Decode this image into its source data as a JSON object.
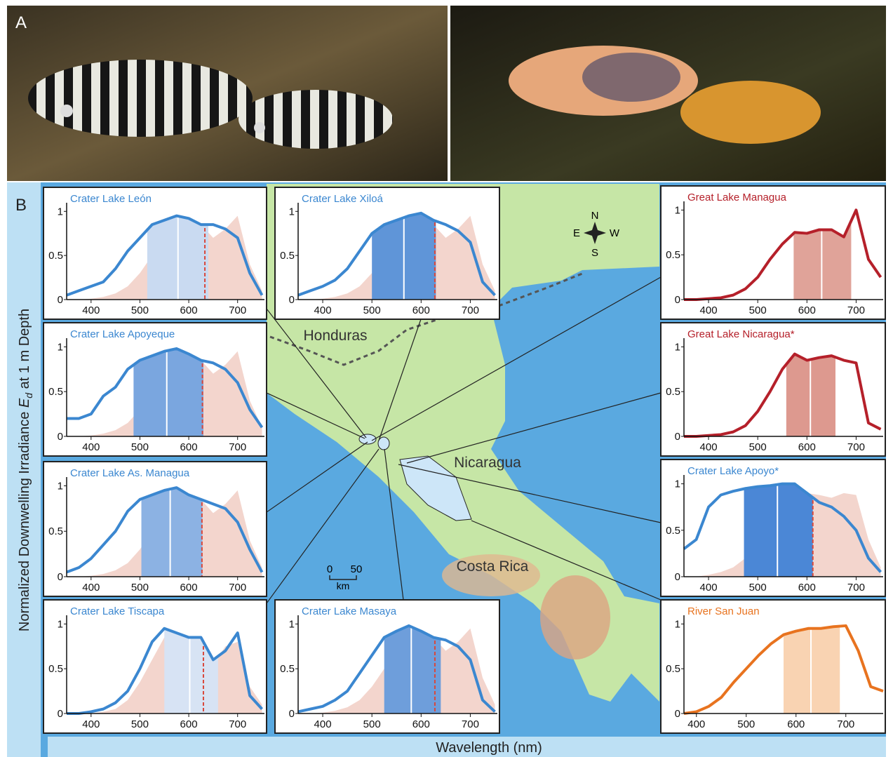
{
  "panels": {
    "a": "A",
    "b": "B"
  },
  "axis_labels": {
    "y_prefix": "Normalized Downwelling Irradiance ",
    "y_symbol": "E",
    "y_subscript": "d",
    "y_suffix": " at 1 m Depth",
    "x": "Wavelength (nm)"
  },
  "map": {
    "countries": [
      "Honduras",
      "Nicaragua",
      "Costa Rica"
    ],
    "compass": [
      "N",
      "E",
      "S",
      "W"
    ],
    "scale": {
      "ticks": [
        0,
        50
      ],
      "unit": "km"
    }
  },
  "chart_data": [
    {
      "type": "line",
      "title": "Crater Lake León",
      "title_color": "#3b87d0",
      "xlim": [
        350,
        755
      ],
      "ylim": [
        0,
        1.05
      ],
      "xticks": [
        400,
        500,
        600,
        700
      ],
      "yticks": [
        0,
        0.5,
        1
      ],
      "x": [
        350,
        375,
        400,
        425,
        450,
        475,
        500,
        525,
        550,
        575,
        600,
        625,
        650,
        675,
        700,
        725,
        750
      ],
      "series": [
        {
          "color": "#f3d5cd",
          "style": "area",
          "values": [
            0,
            0,
            0.01,
            0.03,
            0.07,
            0.15,
            0.3,
            0.5,
            0.75,
            0.9,
            0.9,
            0.85,
            0.7,
            0.8,
            0.95,
            0.4,
            0.1
          ]
        },
        {
          "color": "#3b87d0",
          "style": "line",
          "values": [
            0.05,
            0.1,
            0.15,
            0.2,
            0.35,
            0.55,
            0.7,
            0.85,
            0.9,
            0.95,
            0.92,
            0.85,
            0.85,
            0.8,
            0.7,
            0.3,
            0.05
          ]
        }
      ],
      "band": {
        "start": 515,
        "end": 640,
        "center": 578,
        "color": "#c9daf1"
      },
      "dashed_line": 633
    },
    {
      "type": "line",
      "title": "Crater Lake Xiloá",
      "title_color": "#3b87d0",
      "xlim": [
        350,
        755
      ],
      "ylim": [
        0,
        1.05
      ],
      "xticks": [
        400,
        500,
        600,
        700
      ],
      "yticks": [
        0,
        0.5,
        1
      ],
      "x": [
        350,
        375,
        400,
        425,
        450,
        475,
        500,
        525,
        550,
        575,
        600,
        625,
        650,
        675,
        700,
        725,
        750
      ],
      "series": [
        {
          "color": "#f3d5cd",
          "style": "area",
          "values": [
            0,
            0,
            0.01,
            0.03,
            0.07,
            0.15,
            0.3,
            0.5,
            0.75,
            0.9,
            0.9,
            0.85,
            0.7,
            0.8,
            0.95,
            0.4,
            0.1
          ]
        },
        {
          "color": "#3b87d0",
          "style": "line",
          "values": [
            0.05,
            0.1,
            0.15,
            0.22,
            0.35,
            0.55,
            0.75,
            0.85,
            0.9,
            0.95,
            0.98,
            0.9,
            0.85,
            0.78,
            0.65,
            0.2,
            0.05
          ]
        }
      ],
      "band": {
        "start": 500,
        "end": 630,
        "center": 565,
        "color": "#5f95d8"
      },
      "dashed_line": 628
    },
    {
      "type": "line",
      "title": "Crater Lake Apoyeque",
      "title_color": "#3b87d0",
      "xlim": [
        350,
        755
      ],
      "ylim": [
        0,
        1.05
      ],
      "xticks": [
        400,
        500,
        600,
        700
      ],
      "yticks": [
        0,
        0.5,
        1
      ],
      "x": [
        350,
        375,
        400,
        425,
        450,
        475,
        500,
        525,
        550,
        575,
        600,
        625,
        650,
        675,
        700,
        725,
        750
      ],
      "series": [
        {
          "color": "#f3d5cd",
          "style": "area",
          "values": [
            0,
            0,
            0.01,
            0.03,
            0.07,
            0.15,
            0.3,
            0.5,
            0.75,
            0.9,
            0.9,
            0.85,
            0.7,
            0.8,
            0.95,
            0.4,
            0.1
          ]
        },
        {
          "color": "#3b87d0",
          "style": "line",
          "values": [
            0.2,
            0.2,
            0.25,
            0.45,
            0.55,
            0.75,
            0.85,
            0.9,
            0.95,
            0.98,
            0.92,
            0.85,
            0.82,
            0.75,
            0.6,
            0.3,
            0.1
          ]
        }
      ],
      "band": {
        "start": 487,
        "end": 630,
        "center": 555,
        "color": "#7aa6df"
      },
      "dashed_line": 628
    },
    {
      "type": "line",
      "title": "Crater Lake As. Managua",
      "title_color": "#3b87d0",
      "xlim": [
        350,
        755
      ],
      "ylim": [
        0,
        1.05
      ],
      "xticks": [
        400,
        500,
        600,
        700
      ],
      "yticks": [
        0,
        0.5,
        1
      ],
      "x": [
        350,
        375,
        400,
        425,
        450,
        475,
        500,
        525,
        550,
        575,
        600,
        625,
        650,
        675,
        700,
        725,
        750
      ],
      "series": [
        {
          "color": "#f3d5cd",
          "style": "area",
          "values": [
            0,
            0,
            0.01,
            0.03,
            0.07,
            0.15,
            0.3,
            0.5,
            0.75,
            0.9,
            0.9,
            0.85,
            0.7,
            0.8,
            0.95,
            0.4,
            0.1
          ]
        },
        {
          "color": "#3b87d0",
          "style": "line",
          "values": [
            0.05,
            0.1,
            0.2,
            0.35,
            0.5,
            0.72,
            0.85,
            0.9,
            0.95,
            0.98,
            0.9,
            0.85,
            0.8,
            0.75,
            0.6,
            0.3,
            0.05
          ]
        }
      ],
      "band": {
        "start": 503,
        "end": 628,
        "center": 562,
        "color": "#8cb2e3"
      },
      "dashed_line": 627
    },
    {
      "type": "line",
      "title": "Crater Lake Tiscapa",
      "title_color": "#3b87d0",
      "xlim": [
        350,
        755
      ],
      "ylim": [
        0,
        1.05
      ],
      "xticks": [
        400,
        500,
        600,
        700
      ],
      "yticks": [
        0,
        0.5,
        1
      ],
      "x": [
        350,
        375,
        400,
        425,
        450,
        475,
        500,
        525,
        550,
        575,
        600,
        625,
        650,
        675,
        700,
        725,
        750
      ],
      "series": [
        {
          "color": "#f3d5cd",
          "style": "area",
          "values": [
            0,
            0,
            0,
            0.02,
            0.05,
            0.15,
            0.35,
            0.6,
            0.85,
            0.9,
            0.85,
            0.75,
            0.55,
            0.75,
            0.8,
            0.3,
            0.1
          ]
        },
        {
          "color": "#3b87d0",
          "style": "line",
          "values": [
            0,
            0,
            0.02,
            0.05,
            0.12,
            0.25,
            0.5,
            0.8,
            0.95,
            0.9,
            0.85,
            0.85,
            0.6,
            0.7,
            0.9,
            0.2,
            0.05
          ]
        }
      ],
      "band": {
        "start": 550,
        "end": 660,
        "center": 602,
        "color": "#d7e3f4"
      },
      "dashed_line": 630
    },
    {
      "type": "line",
      "title": "Crater Lake Masaya",
      "title_color": "#3b87d0",
      "xlim": [
        350,
        755
      ],
      "ylim": [
        0,
        1.05
      ],
      "xticks": [
        400,
        500,
        600,
        700
      ],
      "yticks": [
        0,
        0.5,
        1
      ],
      "x": [
        350,
        375,
        400,
        425,
        450,
        475,
        500,
        525,
        550,
        575,
        600,
        625,
        650,
        675,
        700,
        725,
        750
      ],
      "series": [
        {
          "color": "#f3d5cd",
          "style": "area",
          "values": [
            0,
            0,
            0.01,
            0.03,
            0.07,
            0.15,
            0.3,
            0.5,
            0.75,
            0.9,
            0.9,
            0.85,
            0.7,
            0.8,
            0.95,
            0.4,
            0.1
          ]
        },
        {
          "color": "#3b87d0",
          "style": "line",
          "values": [
            0.02,
            0.05,
            0.08,
            0.15,
            0.25,
            0.45,
            0.65,
            0.85,
            0.92,
            0.98,
            0.92,
            0.85,
            0.82,
            0.75,
            0.6,
            0.15,
            0.02
          ]
        }
      ],
      "band": {
        "start": 525,
        "end": 640,
        "center": 580,
        "color": "#6e9edb"
      },
      "dashed_line": 628
    },
    {
      "type": "line",
      "title": "Great Lake Managua",
      "title_color": "#b5202a",
      "xlim": [
        350,
        755
      ],
      "ylim": [
        0,
        1.05
      ],
      "xticks": [
        400,
        500,
        600,
        700
      ],
      "yticks": [
        0,
        0.5,
        1
      ],
      "x": [
        350,
        375,
        400,
        425,
        450,
        475,
        500,
        525,
        550,
        575,
        600,
        625,
        650,
        675,
        700,
        725,
        750
      ],
      "series": [
        {
          "color": "#b5202a",
          "style": "line",
          "values": [
            0,
            0,
            0.01,
            0.02,
            0.05,
            0.12,
            0.25,
            0.45,
            0.62,
            0.75,
            0.74,
            0.78,
            0.78,
            0.7,
            1,
            0.45,
            0.25
          ]
        }
      ],
      "band": {
        "start": 573,
        "end": 690,
        "center": 630,
        "color": "#e0a399"
      }
    },
    {
      "type": "line",
      "title": "Great Lake Nicaragua*",
      "title_color": "#b5202a",
      "xlim": [
        350,
        755
      ],
      "ylim": [
        0,
        1.05
      ],
      "xticks": [
        400,
        500,
        600,
        700
      ],
      "yticks": [
        0,
        0.5,
        1
      ],
      "x": [
        350,
        375,
        400,
        425,
        450,
        475,
        500,
        525,
        550,
        575,
        600,
        625,
        650,
        675,
        700,
        725,
        750
      ],
      "series": [
        {
          "color": "#b5202a",
          "style": "line",
          "values": [
            0,
            0,
            0.01,
            0.02,
            0.05,
            0.12,
            0.28,
            0.5,
            0.75,
            0.92,
            0.85,
            0.88,
            0.9,
            0.85,
            0.82,
            0.15,
            0.08
          ]
        }
      ],
      "band": {
        "start": 558,
        "end": 658,
        "center": 607,
        "color": "#dd998f"
      }
    },
    {
      "type": "line",
      "title": "Crater Lake Apoyo*",
      "title_color": "#3b87d0",
      "xlim": [
        350,
        755
      ],
      "ylim": [
        0,
        1.05
      ],
      "xticks": [
        400,
        500,
        600,
        700
      ],
      "yticks": [
        0,
        0.5,
        1
      ],
      "x": [
        350,
        375,
        400,
        425,
        450,
        475,
        500,
        525,
        550,
        575,
        600,
        625,
        650,
        675,
        700,
        725,
        750
      ],
      "series": [
        {
          "color": "#f3d5cd",
          "style": "area",
          "values": [
            0,
            0,
            0.02,
            0.05,
            0.1,
            0.2,
            0.35,
            0.55,
            0.7,
            0.85,
            0.9,
            0.88,
            0.85,
            0.9,
            0.88,
            0.4,
            0.1
          ]
        },
        {
          "color": "#3b87d0",
          "style": "line",
          "values": [
            0.3,
            0.4,
            0.75,
            0.88,
            0.92,
            0.95,
            0.97,
            0.98,
            1,
            1,
            0.9,
            0.8,
            0.75,
            0.65,
            0.5,
            0.2,
            0.05
          ]
        }
      ],
      "band": {
        "start": 472,
        "end": 612,
        "center": 540,
        "color": "#4b87d6"
      },
      "dashed_line": 612
    },
    {
      "type": "line",
      "title": "River San Juan",
      "title_color": "#e8731f",
      "xlim": [
        375,
        775
      ],
      "ylim": [
        0,
        1.05
      ],
      "xticks": [
        400,
        500,
        600,
        700
      ],
      "yticks": [
        0,
        0.5,
        1
      ],
      "x": [
        375,
        400,
        425,
        450,
        475,
        500,
        525,
        550,
        575,
        600,
        625,
        650,
        675,
        700,
        725,
        750,
        775
      ],
      "series": [
        {
          "color": "#e8731f",
          "style": "line",
          "values": [
            0,
            0.02,
            0.08,
            0.18,
            0.35,
            0.5,
            0.65,
            0.78,
            0.88,
            0.92,
            0.95,
            0.95,
            0.97,
            0.98,
            0.7,
            0.3,
            0.25
          ]
        }
      ],
      "band": {
        "start": 575,
        "end": 688,
        "center": 630,
        "color": "#f9d3b2"
      }
    }
  ]
}
